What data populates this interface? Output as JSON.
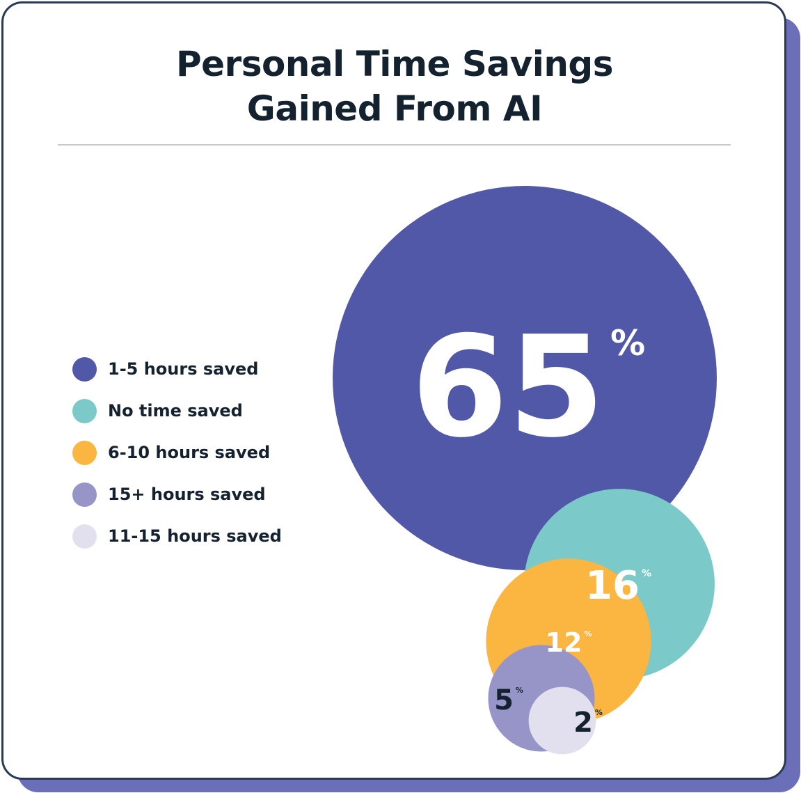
{
  "chart_data": {
    "type": "bubble",
    "title": "Personal Time Savings Gained From AI",
    "title_lines": [
      "Personal Time Savings",
      "Gained From AI"
    ],
    "unit": "%",
    "series": [
      {
        "name": "1-5 hours saved",
        "value": 65,
        "color": "#5258a8",
        "label": "65"
      },
      {
        "name": "No time saved",
        "value": 16,
        "color": "#7bc9c9",
        "label": "16"
      },
      {
        "name": "6-10 hours saved",
        "value": 12,
        "color": "#fbb541",
        "label": "12"
      },
      {
        "name": "15+ hours saved",
        "value": 5,
        "color": "#9795c7",
        "label": "5"
      },
      {
        "name": "11-15 hours saved",
        "value": 2,
        "color": "#e2e0ee",
        "label": "2"
      }
    ],
    "legend": "left"
  }
}
